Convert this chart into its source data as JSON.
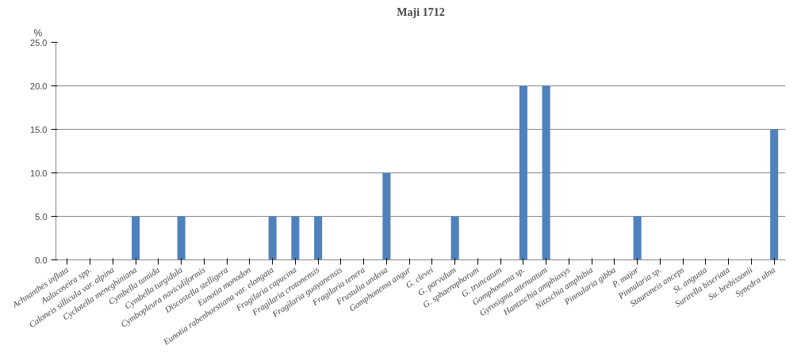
{
  "chart_data": {
    "type": "bar",
    "title": "Maji 1712",
    "ylabel": "%",
    "categories": [
      "Achnanthes inflata",
      "Aulacoseira spp.",
      "Caloneis sillicula var. alpina",
      "Cyclotella meneghiniana",
      "Cymbella tumida",
      "Cymbella turgidula",
      "Cymbopleura naviculiformis",
      "Discostella stelligera",
      "Eunotia monodon",
      "Eunotia rabenhorstiana var. elongata",
      "Fragilaria capucina",
      "Fragilaria crotonensis",
      "Fragilaria guayanensis",
      "Fragilaria tenera",
      "Frustulia undosa",
      "Gomphonema angur",
      "G. clevei",
      "G. parvulum",
      "G. sphaerophorum",
      "G. truncatum",
      "Gomphonema sp.",
      "Gyrosigma attenuatum",
      "Hantzschia amphioxys",
      "Nitzschia amphibia",
      "Pinnularia gibba",
      "P. major",
      "Pinnularia sp.",
      "Stauroneis anceps",
      "St. angusta",
      "Surirella biseriata",
      "Su. brebissonii",
      "Synedra ulna"
    ],
    "values": [
      0,
      0,
      0,
      5,
      0,
      5,
      0,
      0,
      0,
      5,
      5,
      5,
      0,
      0,
      10,
      0,
      0,
      5,
      0,
      0,
      20,
      20,
      0,
      0,
      0,
      5,
      0,
      0,
      0,
      0,
      0,
      15
    ],
    "color": "#4f81bd",
    "ylim": [
      0,
      25
    ],
    "yticks": [
      {
        "value": 0,
        "label": "0.0"
      },
      {
        "value": 5,
        "label": "5.0"
      },
      {
        "value": 10,
        "label": "10.0"
      },
      {
        "value": 15,
        "label": "15.0"
      },
      {
        "value": 20,
        "label": "20.0"
      },
      {
        "value": 25,
        "label": "25.0"
      }
    ],
    "grid": "y"
  }
}
